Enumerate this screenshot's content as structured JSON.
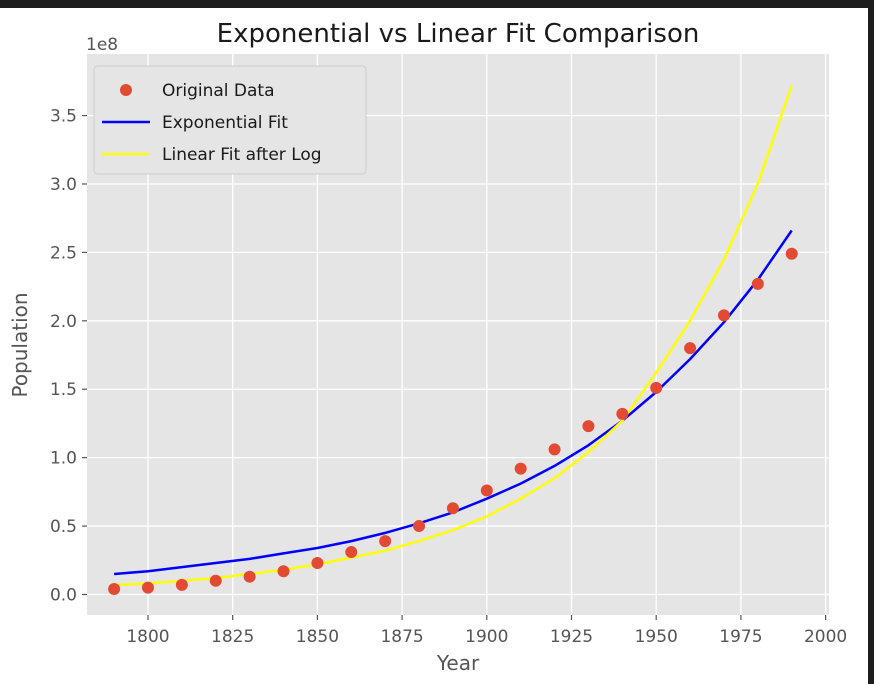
{
  "chart_data": {
    "type": "line",
    "title": "Exponential vs Linear Fit Comparison",
    "xlabel": "Year",
    "ylabel": "Population",
    "y_multiplier_label": "1e8",
    "xlim": [
      1782,
      2001
    ],
    "ylim": [
      -0.15,
      3.95
    ],
    "x_ticks": [
      1800,
      1825,
      1850,
      1875,
      1900,
      1925,
      1950,
      1975,
      2000
    ],
    "x_tick_labels": [
      "1800",
      "1825",
      "1850",
      "1875",
      "1900",
      "1925",
      "1950",
      "1975",
      "2000"
    ],
    "y_ticks": [
      0.0,
      0.5,
      1.0,
      1.5,
      2.0,
      2.5,
      3.0,
      3.5
    ],
    "y_tick_labels": [
      "0.0",
      "0.5",
      "1.0",
      "1.5",
      "2.0",
      "2.5",
      "3.0",
      "3.5"
    ],
    "grid": true,
    "legend_position": "upper-left",
    "x": [
      1790,
      1800,
      1810,
      1820,
      1830,
      1840,
      1850,
      1860,
      1870,
      1880,
      1890,
      1900,
      1910,
      1920,
      1930,
      1940,
      1950,
      1960,
      1970,
      1980,
      1990
    ],
    "series": [
      {
        "name": "Original Data",
        "kind": "scatter",
        "color": "#e24a33",
        "values": [
          0.04,
          0.05,
          0.07,
          0.1,
          0.13,
          0.17,
          0.23,
          0.31,
          0.39,
          0.5,
          0.63,
          0.76,
          0.92,
          1.06,
          1.23,
          1.32,
          1.51,
          1.8,
          2.04,
          2.27,
          2.49
        ]
      },
      {
        "name": "Exponential Fit",
        "kind": "line",
        "color": "#0000ff",
        "values": [
          0.15,
          0.17,
          0.2,
          0.23,
          0.26,
          0.3,
          0.34,
          0.39,
          0.45,
          0.52,
          0.6,
          0.7,
          0.81,
          0.94,
          1.09,
          1.27,
          1.48,
          1.72,
          1.99,
          2.3,
          2.66
        ]
      },
      {
        "name": "Linear Fit after Log",
        "kind": "line",
        "color": "#ffff00",
        "values": [
          0.07,
          0.08,
          0.1,
          0.12,
          0.15,
          0.18,
          0.22,
          0.27,
          0.32,
          0.39,
          0.47,
          0.57,
          0.7,
          0.85,
          1.04,
          1.27,
          1.62,
          2.0,
          2.45,
          3.0,
          3.72
        ]
      }
    ]
  }
}
